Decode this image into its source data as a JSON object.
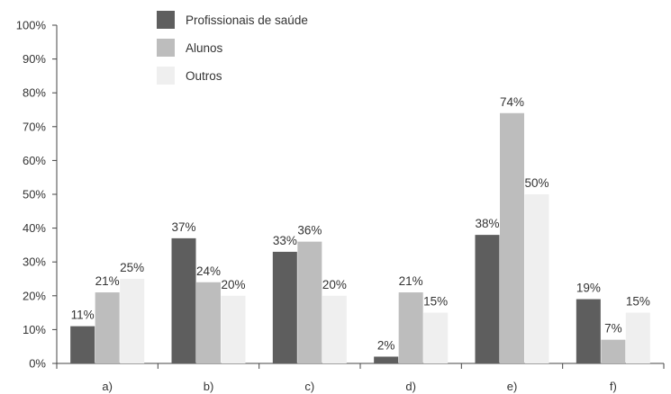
{
  "chart_data": {
    "type": "bar",
    "categories": [
      "a)",
      "b)",
      "c)",
      "d)",
      "e)",
      "f)"
    ],
    "series": [
      {
        "name": "Profissionais de saúde",
        "values": [
          11,
          37,
          33,
          2,
          38,
          19
        ],
        "labels": [
          "11%",
          "37%",
          "33%",
          "2%",
          "38%",
          "19%"
        ],
        "color": "#5e5e5e"
      },
      {
        "name": "Alunos",
        "values": [
          21,
          24,
          36,
          21,
          74,
          7
        ],
        "labels": [
          "21%",
          "24%",
          "36%",
          "21%",
          "74%",
          "7%"
        ],
        "color": "#bdbdbd"
      },
      {
        "name": "Outros",
        "values": [
          25,
          20,
          20,
          15,
          50,
          15
        ],
        "labels": [
          "25%",
          "20%",
          "20%",
          "15%",
          "50%",
          "15%"
        ],
        "color": "#efefef"
      }
    ],
    "ylim": [
      0,
      100
    ],
    "yticks": [
      0,
      10,
      20,
      30,
      40,
      50,
      60,
      70,
      80,
      90,
      100
    ],
    "ytick_labels": [
      "0%",
      "10%",
      "20%",
      "30%",
      "40%",
      "50%",
      "60%",
      "70%",
      "80%",
      "90%",
      "100%"
    ],
    "title": "",
    "xlabel": "",
    "ylabel": "",
    "grid": false,
    "legend_position": "top-center"
  }
}
